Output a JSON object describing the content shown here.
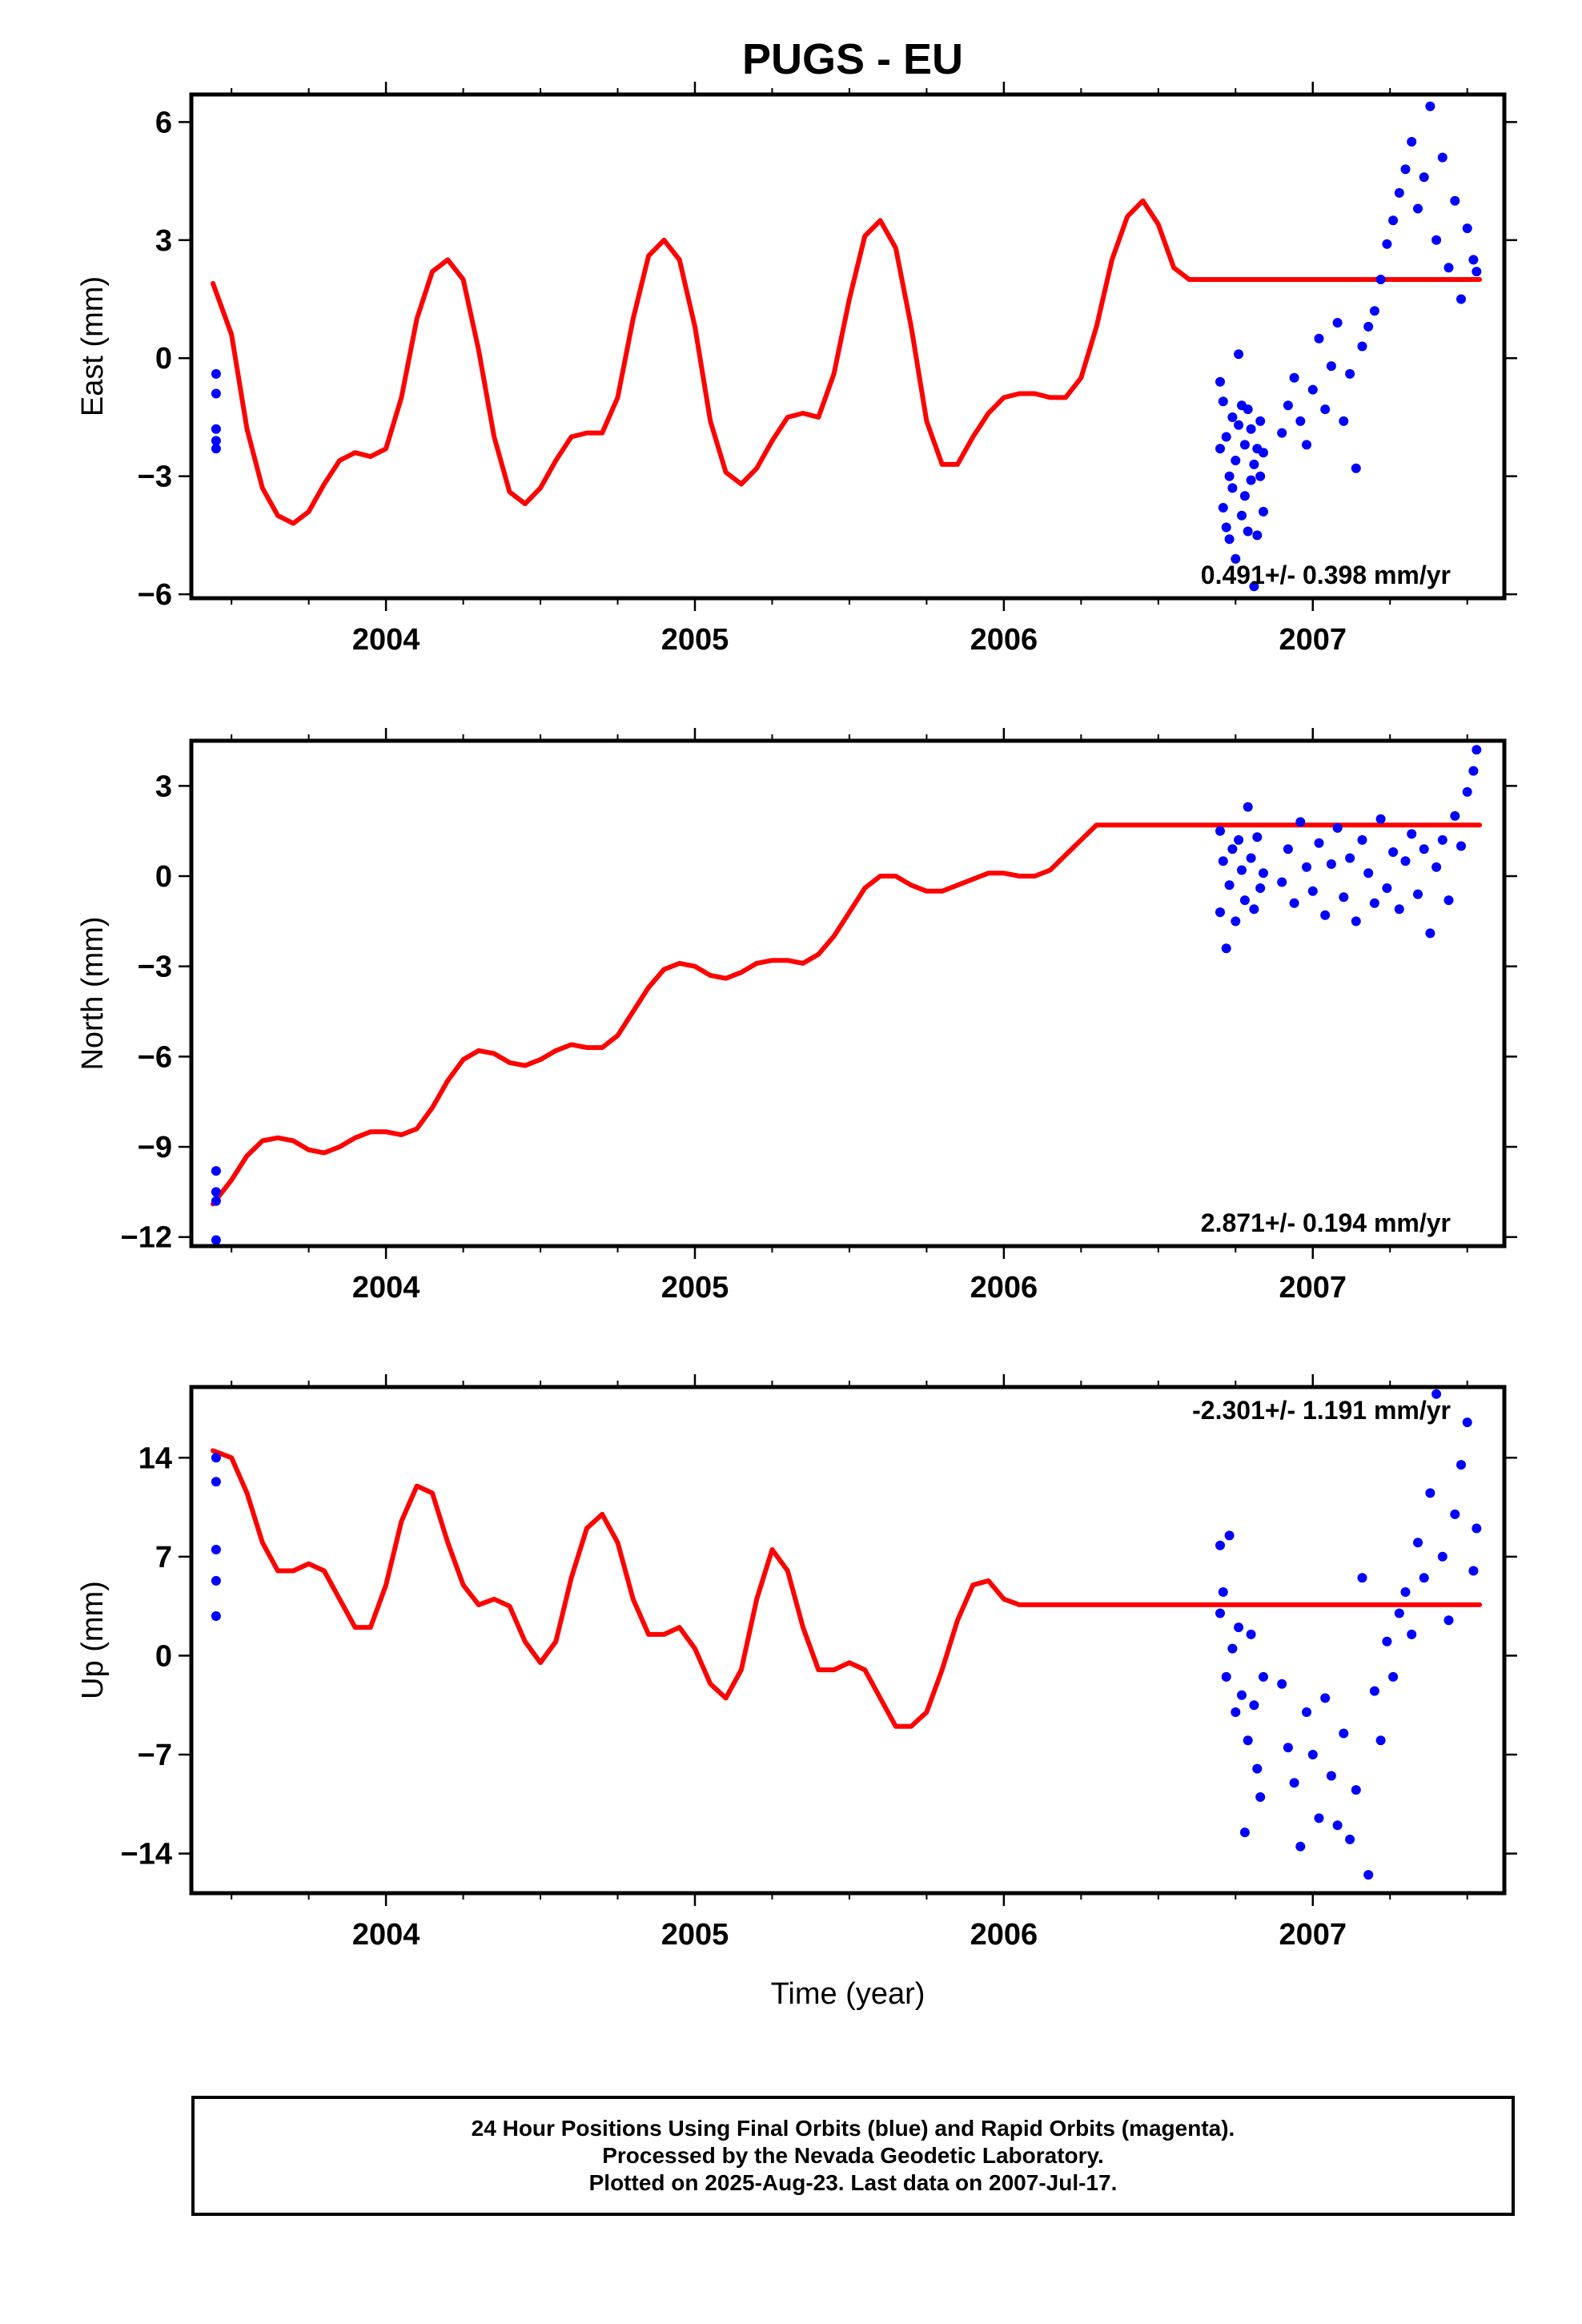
{
  "title": "PUGS - EU",
  "colors": {
    "model": "#ff0000",
    "data": "#0000ff",
    "axes": "#000000"
  },
  "chart_data": [
    {
      "type": "scatter",
      "panel": "east",
      "ylabel": "East (mm)",
      "xlabel": "",
      "xlim": [
        2003.37,
        2007.62
      ],
      "ylim": [
        -6.1,
        6.7
      ],
      "yticks": [
        -6,
        -3,
        0,
        3,
        6
      ],
      "ytick_labels": [
        "−6",
        "−3",
        "0",
        "3",
        "6"
      ],
      "xticks": [
        2004,
        2005,
        2006,
        2007
      ],
      "xtick_labels": [
        "2004",
        "2005",
        "2006",
        "2007"
      ],
      "annotation": "0.491+/- 0.398 mm/yr",
      "annotation_position": "bottom-right",
      "grid": false,
      "model_curve": {
        "x": [
          2003.44,
          2003.5,
          2003.55,
          2003.6,
          2003.65,
          2003.7,
          2003.75,
          2003.8,
          2003.85,
          2003.9,
          2003.95,
          2004.0,
          2004.05,
          2004.1,
          2004.15,
          2004.2,
          2004.25,
          2004.3,
          2004.35,
          2004.4,
          2004.45,
          2004.5,
          2004.55,
          2004.6,
          2004.65,
          2004.7,
          2004.75,
          2004.8,
          2004.85,
          2004.9,
          2004.95,
          2005.0,
          2005.05,
          2005.1,
          2005.15,
          2005.2,
          2005.25,
          2005.3,
          2005.35,
          2005.4,
          2005.45,
          2005.5,
          2005.55,
          2005.6,
          2005.65,
          2005.7,
          2005.75,
          2005.8,
          2005.85,
          2005.9,
          2005.95,
          2006.0,
          2006.05,
          2006.1,
          2006.15,
          2006.2,
          2006.25,
          2006.3,
          2006.35,
          2006.4,
          2006.45,
          2006.5,
          2006.55,
          2006.6,
          2006.65,
          2006.7,
          2006.75,
          2006.8,
          2006.85,
          2006.9,
          2006.95,
          2007.0,
          2007.05,
          2007.1,
          2007.15,
          2007.2,
          2007.25,
          2007.3,
          2007.35,
          2007.4,
          2007.45,
          2007.5,
          2007.54
        ],
        "y": [
          1.9,
          0.6,
          -1.8,
          -3.3,
          -4.0,
          -4.2,
          -3.9,
          -3.2,
          -2.6,
          -2.4,
          -2.5,
          -2.3,
          -1.0,
          1.0,
          2.2,
          2.5,
          2.0,
          0.2,
          -2.0,
          -3.4,
          -3.7,
          -3.3,
          -2.6,
          -2.0,
          -1.9,
          -1.9,
          -1.0,
          1.0,
          2.6,
          3.0,
          2.5,
          0.8,
          -1.6,
          -2.9,
          -3.2,
          -2.8,
          -2.1,
          -1.5,
          -1.4,
          -1.5,
          -0.4,
          1.5,
          3.1,
          3.5,
          2.8,
          0.8,
          -1.6,
          -2.7,
          -2.7,
          -2.0,
          -1.4,
          -1.0,
          -0.9,
          -0.9,
          -1.0,
          -1.0,
          -0.5,
          0.8,
          2.5,
          3.6,
          4.0,
          3.4,
          2.3,
          2.0,
          2.0,
          2.0,
          2.0,
          2.0,
          2.0,
          2.0,
          2.0,
          2.0,
          2.0,
          2.0,
          2.0,
          2.0,
          2.0,
          2.0,
          2.0,
          2.0,
          2.0,
          2.0,
          2.0
        ]
      },
      "points": {
        "x": [
          2003.45,
          2003.45,
          2003.45,
          2003.45,
          2003.45,
          2006.7,
          2006.7,
          2006.71,
          2006.71,
          2006.72,
          2006.72,
          2006.73,
          2006.73,
          2006.74,
          2006.74,
          2006.75,
          2006.75,
          2006.76,
          2006.76,
          2006.77,
          2006.77,
          2006.78,
          2006.78,
          2006.79,
          2006.79,
          2006.8,
          2006.8,
          2006.81,
          2006.81,
          2006.82,
          2006.82,
          2006.83,
          2006.83,
          2006.84,
          2006.84,
          2006.9,
          2006.92,
          2006.94,
          2006.96,
          2006.98,
          2007.0,
          2007.02,
          2007.04,
          2007.06,
          2007.08,
          2007.1,
          2007.12,
          2007.14,
          2007.16,
          2007.18,
          2007.2,
          2007.22,
          2007.24,
          2007.26,
          2007.28,
          2007.3,
          2007.32,
          2007.34,
          2007.36,
          2007.38,
          2007.4,
          2007.42,
          2007.44,
          2007.46,
          2007.48,
          2007.5,
          2007.52,
          2007.53
        ],
        "y": [
          -0.4,
          -0.9,
          -1.8,
          -2.1,
          -2.3,
          -0.6,
          -2.3,
          -3.8,
          -1.1,
          -4.3,
          -2.0,
          -4.6,
          -3.0,
          -1.5,
          -3.3,
          -5.1,
          -2.6,
          0.1,
          -1.7,
          -4.0,
          -1.2,
          -3.5,
          -2.2,
          -1.3,
          -4.4,
          -1.8,
          -3.1,
          -2.7,
          -5.8,
          -4.5,
          -2.3,
          -3.0,
          -1.6,
          -2.4,
          -3.9,
          -1.9,
          -1.2,
          -0.5,
          -1.6,
          -2.2,
          -0.8,
          0.5,
          -1.3,
          -0.2,
          0.9,
          -1.6,
          -0.4,
          -2.8,
          0.3,
          0.8,
          1.2,
          2.0,
          2.9,
          3.5,
          4.2,
          4.8,
          5.5,
          3.8,
          4.6,
          6.4,
          3.0,
          5.1,
          2.3,
          4.0,
          1.5,
          3.3,
          2.5,
          2.2
        ]
      }
    },
    {
      "type": "scatter",
      "panel": "north",
      "ylabel": "North (mm)",
      "xlabel": "",
      "xlim": [
        2003.37,
        2007.62
      ],
      "ylim": [
        -12.3,
        4.5
      ],
      "yticks": [
        -12,
        -9,
        -6,
        -3,
        0,
        3
      ],
      "ytick_labels": [
        "−12",
        "−9",
        "−6",
        "−3",
        "0",
        "3"
      ],
      "xticks": [
        2004,
        2005,
        2006,
        2007
      ],
      "xtick_labels": [
        "2004",
        "2005",
        "2006",
        "2007"
      ],
      "annotation": "2.871+/- 0.194 mm/yr",
      "annotation_position": "bottom-right",
      "grid": false,
      "model_curve": {
        "x": [
          2003.44,
          2003.5,
          2003.55,
          2003.6,
          2003.65,
          2003.7,
          2003.75,
          2003.8,
          2003.85,
          2003.9,
          2003.95,
          2004.0,
          2004.05,
          2004.1,
          2004.15,
          2004.2,
          2004.25,
          2004.3,
          2004.35,
          2004.4,
          2004.45,
          2004.5,
          2004.55,
          2004.6,
          2004.65,
          2004.7,
          2004.75,
          2004.8,
          2004.85,
          2004.9,
          2004.95,
          2005.0,
          2005.05,
          2005.1,
          2005.15,
          2005.2,
          2005.25,
          2005.3,
          2005.35,
          2005.4,
          2005.45,
          2005.5,
          2005.55,
          2005.6,
          2005.65,
          2005.7,
          2005.75,
          2005.8,
          2005.85,
          2005.9,
          2005.95,
          2006.0,
          2006.05,
          2006.1,
          2006.15,
          2006.2,
          2006.25,
          2006.3,
          2006.35,
          2006.4,
          2006.45,
          2006.5,
          2006.55,
          2006.6,
          2006.65,
          2006.7,
          2006.75,
          2006.8,
          2006.85,
          2006.9,
          2006.95,
          2007.0,
          2007.05,
          2007.1,
          2007.15,
          2007.2,
          2007.25,
          2007.3,
          2007.35,
          2007.4,
          2007.45,
          2007.5,
          2007.54
        ],
        "y": [
          -10.9,
          -10.1,
          -9.3,
          -8.8,
          -8.7,
          -8.8,
          -9.1,
          -9.2,
          -9.0,
          -8.7,
          -8.5,
          -8.5,
          -8.6,
          -8.4,
          -7.7,
          -6.8,
          -6.1,
          -5.8,
          -5.9,
          -6.2,
          -6.3,
          -6.1,
          -5.8,
          -5.6,
          -5.7,
          -5.7,
          -5.3,
          -4.5,
          -3.7,
          -3.1,
          -2.9,
          -3.0,
          -3.3,
          -3.4,
          -3.2,
          -2.9,
          -2.8,
          -2.8,
          -2.9,
          -2.6,
          -2.0,
          -1.2,
          -0.4,
          0.0,
          0.0,
          -0.3,
          -0.5,
          -0.5,
          -0.3,
          -0.1,
          0.1,
          0.1,
          0.0,
          0.0,
          0.2,
          0.7,
          1.2,
          1.7,
          1.7,
          1.7,
          1.7,
          1.7,
          1.7,
          1.7,
          1.7,
          1.7,
          1.7,
          1.7,
          1.7,
          1.7,
          1.7,
          1.7,
          1.7,
          1.7,
          1.7,
          1.7,
          1.7,
          1.7,
          1.7,
          1.7,
          1.7,
          1.7,
          1.7
        ]
      },
      "points": {
        "x": [
          2003.45,
          2003.45,
          2003.45,
          2003.45,
          2006.7,
          2006.7,
          2006.71,
          2006.72,
          2006.73,
          2006.74,
          2006.75,
          2006.76,
          2006.77,
          2006.78,
          2006.79,
          2006.8,
          2006.81,
          2006.82,
          2006.83,
          2006.84,
          2006.9,
          2006.92,
          2006.94,
          2006.96,
          2006.98,
          2007.0,
          2007.02,
          2007.04,
          2007.06,
          2007.08,
          2007.1,
          2007.12,
          2007.14,
          2007.16,
          2007.18,
          2007.2,
          2007.22,
          2007.24,
          2007.26,
          2007.28,
          2007.3,
          2007.32,
          2007.34,
          2007.36,
          2007.38,
          2007.4,
          2007.42,
          2007.44,
          2007.46,
          2007.48,
          2007.5,
          2007.52,
          2007.53
        ],
        "y": [
          -9.8,
          -10.5,
          -10.8,
          -12.1,
          1.5,
          -1.2,
          0.5,
          -2.4,
          -0.3,
          0.9,
          -1.5,
          1.2,
          0.2,
          -0.8,
          2.3,
          0.6,
          -1.1,
          1.3,
          -0.4,
          0.1,
          -0.2,
          0.9,
          -0.9,
          1.8,
          0.3,
          -0.5,
          1.1,
          -1.3,
          0.4,
          1.6,
          -0.7,
          0.6,
          -1.5,
          1.2,
          0.1,
          -0.9,
          1.9,
          -0.4,
          0.8,
          -1.1,
          0.5,
          1.4,
          -0.6,
          0.9,
          -1.9,
          0.3,
          1.2,
          -0.8,
          2.0,
          1.0,
          2.8,
          3.5,
          4.2
        ]
      }
    },
    {
      "type": "scatter",
      "panel": "up",
      "ylabel": "Up (mm)",
      "xlabel": "Time (year)",
      "xlim": [
        2003.37,
        2007.62
      ],
      "ylim": [
        -16.8,
        19.0
      ],
      "yticks": [
        -14,
        -7,
        0,
        7,
        14
      ],
      "ytick_labels": [
        "−14",
        "−7",
        "0",
        "7",
        "14"
      ],
      "xticks": [
        2004,
        2005,
        2006,
        2007
      ],
      "xtick_labels": [
        "2004",
        "2005",
        "2006",
        "2007"
      ],
      "annotation": "-2.301+/- 1.191 mm/yr",
      "annotation_position": "top-right",
      "grid": false,
      "model_curve": {
        "x": [
          2003.44,
          2003.5,
          2003.55,
          2003.6,
          2003.65,
          2003.7,
          2003.75,
          2003.8,
          2003.85,
          2003.9,
          2003.95,
          2004.0,
          2004.05,
          2004.1,
          2004.15,
          2004.2,
          2004.25,
          2004.3,
          2004.35,
          2004.4,
          2004.45,
          2004.5,
          2004.55,
          2004.6,
          2004.65,
          2004.7,
          2004.75,
          2004.8,
          2004.85,
          2004.9,
          2004.95,
          2005.0,
          2005.05,
          2005.1,
          2005.15,
          2005.2,
          2005.25,
          2005.3,
          2005.35,
          2005.4,
          2005.45,
          2005.5,
          2005.55,
          2005.6,
          2005.65,
          2005.7,
          2005.75,
          2005.8,
          2005.85,
          2005.9,
          2005.95,
          2006.0,
          2006.05,
          2006.1,
          2006.15,
          2006.2,
          2006.25,
          2006.3,
          2006.35,
          2006.4,
          2006.45,
          2006.5,
          2006.55,
          2006.6,
          2006.65,
          2006.7,
          2006.75,
          2006.8,
          2006.85,
          2006.9,
          2006.95,
          2007.0,
          2007.05,
          2007.1,
          2007.15,
          2007.2,
          2007.25,
          2007.3,
          2007.35,
          2007.4,
          2007.45,
          2007.5,
          2007.54
        ],
        "y": [
          14.5,
          14.0,
          11.5,
          8.0,
          6.0,
          6.0,
          6.5,
          6.0,
          4.0,
          2.0,
          2.0,
          5.0,
          9.5,
          12.0,
          11.5,
          8.0,
          5.0,
          3.6,
          4.0,
          3.5,
          1.0,
          -0.5,
          1.0,
          5.5,
          9.0,
          10.0,
          8.0,
          4.0,
          1.5,
          1.5,
          2.0,
          0.5,
          -2.0,
          -3.0,
          -1.0,
          4.0,
          7.5,
          6.0,
          2.0,
          -1.0,
          -1.0,
          -0.5,
          -1.0,
          -3.0,
          -5.0,
          -5.0,
          -4.0,
          -1.0,
          2.5,
          5.0,
          5.3,
          4.0,
          3.6,
          3.6,
          3.6,
          3.6,
          3.6,
          3.6,
          3.6,
          3.6,
          3.6,
          3.6,
          3.6,
          3.6,
          3.6,
          3.6,
          3.6,
          3.6,
          3.6,
          3.6,
          3.6,
          3.6,
          3.6,
          3.6,
          3.6,
          3.6,
          3.6,
          3.6,
          3.6,
          3.6,
          3.6,
          3.6,
          3.6
        ]
      },
      "points": {
        "x": [
          2003.45,
          2003.45,
          2003.45,
          2003.45,
          2003.45,
          2006.7,
          2006.7,
          2006.71,
          2006.72,
          2006.73,
          2006.74,
          2006.75,
          2006.76,
          2006.77,
          2006.78,
          2006.79,
          2006.8,
          2006.81,
          2006.82,
          2006.83,
          2006.84,
          2006.9,
          2006.92,
          2006.94,
          2006.96,
          2006.98,
          2007.0,
          2007.02,
          2007.04,
          2007.06,
          2007.08,
          2007.1,
          2007.12,
          2007.14,
          2007.16,
          2007.18,
          2007.2,
          2007.22,
          2007.24,
          2007.26,
          2007.28,
          2007.3,
          2007.32,
          2007.34,
          2007.36,
          2007.38,
          2007.4,
          2007.42,
          2007.44,
          2007.46,
          2007.48,
          2007.5,
          2007.52,
          2007.53
        ],
        "y": [
          14.0,
          12.3,
          7.5,
          5.3,
          2.8,
          7.8,
          3.0,
          4.5,
          -1.5,
          8.5,
          0.5,
          -4.0,
          2.0,
          -2.8,
          -12.5,
          -6.0,
          1.5,
          -3.5,
          -8.0,
          -10.0,
          -1.5,
          -2.0,
          -6.5,
          -9.0,
          -13.5,
          -4.0,
          -7.0,
          -11.5,
          -3.0,
          -8.5,
          -12.0,
          -5.5,
          -13.0,
          -9.5,
          5.5,
          -15.5,
          -2.5,
          -6.0,
          1.0,
          -1.5,
          3.0,
          4.5,
          1.5,
          8.0,
          5.5,
          11.5,
          18.5,
          7.0,
          2.5,
          10.0,
          13.5,
          16.5,
          6.0,
          9.0
        ]
      }
    }
  ],
  "footer": {
    "line1": "24 Hour Positions Using Final Orbits (blue) and Rapid Orbits (magenta).",
    "line2": "Processed by the Nevada Geodetic Laboratory.",
    "line3": "Plotted on 2025-Aug-23. Last data on 2007-Jul-17."
  }
}
